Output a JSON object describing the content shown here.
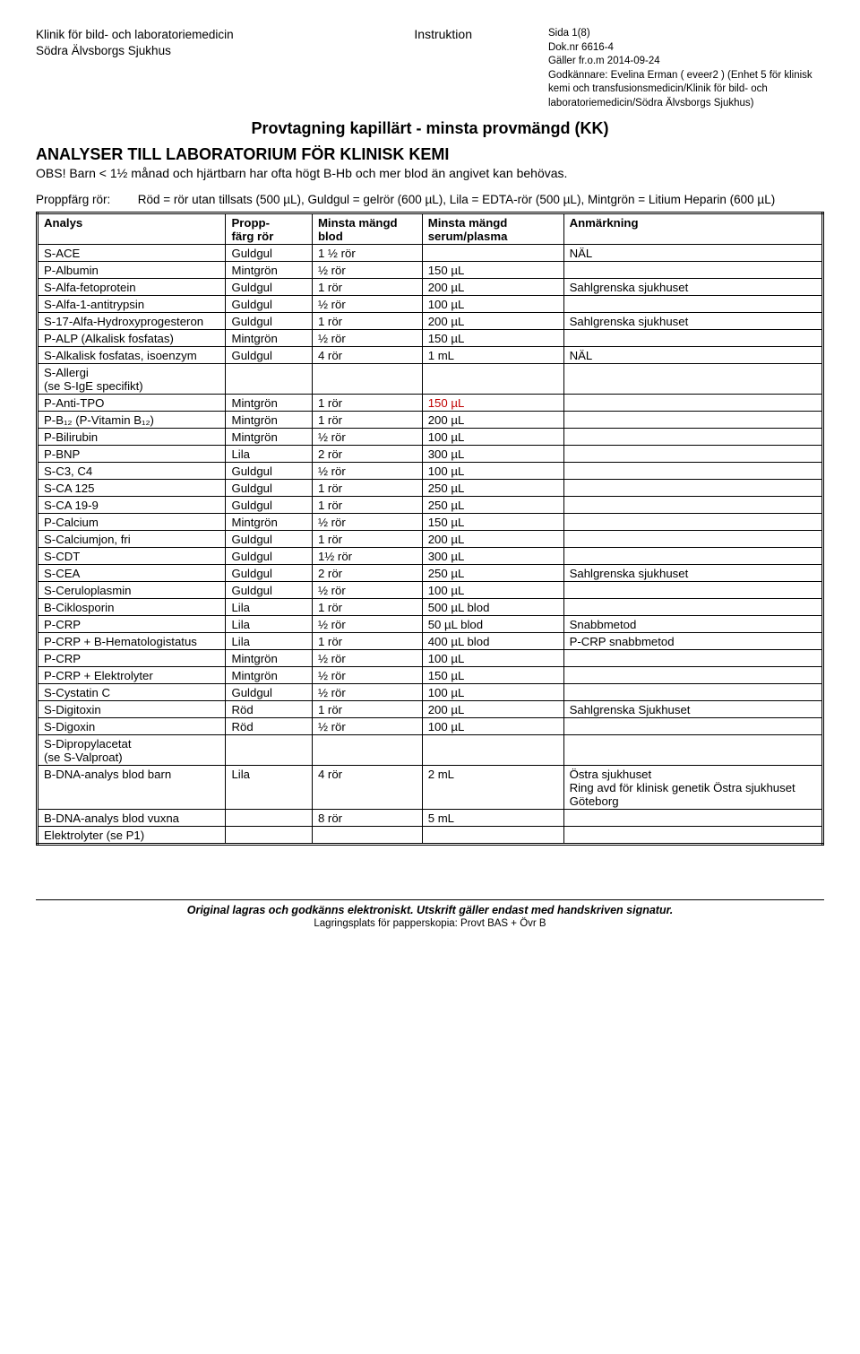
{
  "header": {
    "left_line1": "Klinik för bild- och laboratoriemedicin",
    "left_line2": "Södra Älvsborgs Sjukhus",
    "mid_line1": "Instruktion",
    "right_sida": "Sida 1(8)",
    "right_dok": "Dok.nr 6616-4",
    "right_galler": "Gäller fr.o.m 2014-09-24",
    "right_godkannare": "Godkännare: Evelina Erman ( eveer2 ) (Enhet 5 för klinisk kemi och transfusionsmedicin/Klinik för bild- och laboratoriemedicin/Södra Älvsborgs Sjukhus)"
  },
  "title": "Provtagning kapillärt - minsta provmängd (KK)",
  "section_title": "ANALYSER TILL LABORATORIUM FÖR KLINISK KEMI",
  "obs": "OBS! Barn < 1½ månad och hjärtbarn har ofta högt B-Hb och mer blod än angivet kan behövas.",
  "legend_label": "Proppfärg rör:",
  "legend_text": "Röd = rör utan tillsats (500 µL), Guldgul = gelrör (600 µL), Lila = EDTA-rör (500 µL), Mintgrön = Litium Heparin (600 µL)",
  "table": {
    "columns": [
      "Analys",
      "Propp-\nfärg rör",
      "Minsta mängd\nblod",
      "Minsta mängd\nserum/plasma",
      "Anmärkning"
    ],
    "col_widths": [
      "24%",
      "11%",
      "14%",
      "18%",
      "33%"
    ],
    "rows": [
      [
        "S-ACE",
        "Guldgul",
        "1 ½ rör",
        "",
        "NÄL"
      ],
      [
        "P-Albumin",
        "Mintgrön",
        "½ rör",
        "150 µL",
        ""
      ],
      [
        "S-Alfa-fetoprotein",
        "Guldgul",
        "1 rör",
        "200 µL",
        "Sahlgrenska sjukhuset"
      ],
      [
        "S-Alfa-1-antitrypsin",
        "Guldgul",
        "½ rör",
        "100 µL",
        ""
      ],
      [
        "S-17-Alfa-Hydroxyprogesteron",
        "Guldgul",
        "1 rör",
        "200 µL",
        "Sahlgrenska sjukhuset"
      ],
      [
        "P-ALP (Alkalisk fosfatas)",
        "Mintgrön",
        "½ rör",
        "150 µL",
        ""
      ],
      [
        "S-Alkalisk fosfatas, isoenzym",
        "Guldgul",
        "4 rör",
        "1 mL",
        "NÄL"
      ],
      [
        "S-Allergi\n(se S-IgE specifikt)",
        "",
        "",
        "",
        ""
      ],
      [
        "P-Anti-TPO",
        "Mintgrön",
        "1 rör",
        {
          "text": "150 µL",
          "red": true
        },
        ""
      ],
      [
        "P-B₁₂ (P-Vitamin B₁₂)",
        "Mintgrön",
        "1 rör",
        "200 µL",
        ""
      ],
      [
        "P-Bilirubin",
        "Mintgrön",
        "½ rör",
        "100 µL",
        ""
      ],
      [
        "P-BNP",
        "Lila",
        "2 rör",
        "300 µL",
        ""
      ],
      [
        "S-C3, C4",
        "Guldgul",
        "½ rör",
        "100 µL",
        ""
      ],
      [
        "S-CA 125",
        "Guldgul",
        "1 rör",
        "250 µL",
        ""
      ],
      [
        "S-CA 19-9",
        "Guldgul",
        "1 rör",
        "250 µL",
        ""
      ],
      [
        "P-Calcium",
        "Mintgrön",
        "½ rör",
        "150 µL",
        ""
      ],
      [
        "S-Calciumjon, fri",
        "Guldgul",
        "1 rör",
        "200 µL",
        ""
      ],
      [
        "S-CDT",
        "Guldgul",
        "1½ rör",
        "300 µL",
        ""
      ],
      [
        "S-CEA",
        "Guldgul",
        "2 rör",
        "250 µL",
        "Sahlgrenska sjukhuset"
      ],
      [
        "S-Ceruloplasmin",
        "Guldgul",
        "½ rör",
        "100 µL",
        ""
      ],
      [
        "B-Ciklosporin",
        "Lila",
        "1 rör",
        "500 µL blod",
        ""
      ],
      [
        "P-CRP",
        "Lila",
        "½ rör",
        "50 µL blod",
        "Snabbmetod"
      ],
      [
        "P-CRP + B-Hematologistatus",
        "Lila",
        "1 rör",
        "400 µL blod",
        "P-CRP snabbmetod"
      ],
      [
        "P-CRP",
        "Mintgrön",
        "½ rör",
        "100 µL",
        ""
      ],
      [
        "P-CRP + Elektrolyter",
        "Mintgrön",
        "½ rör",
        "150 µL",
        ""
      ],
      [
        "S-Cystatin C",
        "Guldgul",
        "½ rör",
        "100 µL",
        ""
      ],
      [
        "S-Digitoxin",
        "Röd",
        "1 rör",
        "200 µL",
        "Sahlgrenska Sjukhuset"
      ],
      [
        "S-Digoxin",
        "Röd",
        "½ rör",
        "100 µL",
        ""
      ],
      [
        "S-Dipropylacetat\n(se S-Valproat)",
        "",
        "",
        "",
        ""
      ],
      [
        "B-DNA-analys blod barn",
        "Lila",
        "4 rör",
        "2 mL",
        "Östra sjukhuset\nRing avd för klinisk genetik Östra sjukhuset Göteborg"
      ],
      [
        "B-DNA-analys blod vuxna",
        "",
        "8 rör",
        "5 mL",
        ""
      ],
      [
        "Elektrolyter (se P1)",
        "",
        "",
        "",
        ""
      ]
    ]
  },
  "footer": {
    "line1": "Original lagras och godkänns elektroniskt. Utskrift gäller endast med handskriven signatur.",
    "line2": "Lagringsplats för papperskopia: Provt BAS + Övr B"
  }
}
